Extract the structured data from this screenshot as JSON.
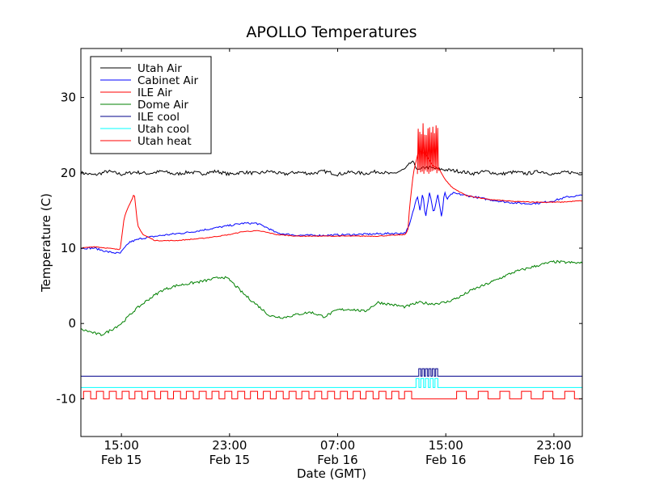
{
  "chart_data": {
    "type": "line",
    "title": "APOLLO Temperatures",
    "xlabel": "Date (GMT)",
    "ylabel": "Temperature (C)",
    "x_unit": "hours since Feb 15 12:00 GMT",
    "xlim": [
      0,
      37.1
    ],
    "ylim": [
      -15,
      36.5
    ],
    "yticks": [
      {
        "value": -10,
        "label": "-10"
      },
      {
        "value": 0,
        "label": "0"
      },
      {
        "value": 10,
        "label": "10"
      },
      {
        "value": 20,
        "label": "20"
      },
      {
        "value": 30,
        "label": "30"
      }
    ],
    "xticks": [
      {
        "value": 3,
        "time": "15:00",
        "date": "Feb 15"
      },
      {
        "value": 11,
        "time": "23:00",
        "date": "Feb 15"
      },
      {
        "value": 19,
        "time": "07:00",
        "date": "Feb 16"
      },
      {
        "value": 27,
        "time": "15:00",
        "date": "Feb 16"
      },
      {
        "value": 35,
        "time": "23:00",
        "date": "Feb 16"
      }
    ],
    "legend_position": "top-left",
    "series": [
      {
        "name": "Utah Air",
        "color": "#000000",
        "x": [
          0,
          1,
          2,
          3,
          4,
          5,
          6,
          7,
          8,
          9,
          10,
          11,
          12,
          13,
          14,
          15,
          16,
          17,
          18,
          19,
          20,
          21,
          22,
          23,
          24,
          24.5,
          25,
          25.5,
          26,
          27,
          28,
          29,
          30,
          31,
          32,
          33,
          34,
          35,
          36,
          37.1
        ],
        "y": [
          20.0,
          19.7,
          20.2,
          19.8,
          20.1,
          19.9,
          20.2,
          19.8,
          20.1,
          19.9,
          20.2,
          19.8,
          20.1,
          19.9,
          20.2,
          19.8,
          20.1,
          19.9,
          20.2,
          19.8,
          20.1,
          19.9,
          20.2,
          19.8,
          20.5,
          21.5,
          20.3,
          20.8,
          20.6,
          20.4,
          20.2,
          19.9,
          20.2,
          19.8,
          20.1,
          19.9,
          20.2,
          19.8,
          20.1,
          19.9
        ],
        "jitter": 0.45
      },
      {
        "name": "Cabinet Air",
        "color": "#0000ff",
        "x": [
          0,
          1,
          2,
          2.9,
          3.6,
          4.5,
          6,
          8,
          10,
          12,
          13,
          13.8,
          14.5,
          16,
          18,
          20,
          22,
          24,
          24.3,
          24.6,
          24.9,
          25.1,
          25.3,
          25.5,
          25.8,
          26.1,
          26.4,
          26.7,
          26.9,
          27.1,
          27.5,
          28.5,
          30,
          31.5,
          33,
          34,
          35,
          36,
          37.1
        ],
        "y": [
          10.0,
          10.0,
          9.5,
          9.3,
          10.8,
          11.3,
          11.7,
          12.1,
          12.7,
          13.3,
          13.3,
          12.7,
          12.0,
          11.7,
          11.7,
          11.8,
          11.9,
          12.0,
          13.0,
          15.0,
          17.0,
          15.0,
          17.5,
          14.0,
          17.5,
          14.5,
          17.2,
          14.0,
          17.5,
          16.5,
          17.3,
          17.0,
          16.5,
          16.1,
          15.9,
          16.0,
          16.3,
          16.8,
          17.0
        ],
        "jitter": 0.25
      },
      {
        "name": "ILE Air",
        "color": "#ff0000",
        "x": [
          0,
          1,
          2,
          2.9,
          3.2,
          3.5,
          3.8,
          3.95,
          4.2,
          4.6,
          5.5,
          7,
          9,
          11,
          12,
          13,
          13.5,
          14.5,
          16,
          18,
          20,
          22,
          24,
          24.2,
          24.3,
          24.6,
          25.0,
          25.5,
          26,
          26.5,
          27.0,
          27.5,
          28.5,
          30,
          32,
          34,
          35.5,
          37.1
        ],
        "y": [
          10.0,
          10.2,
          10.0,
          9.8,
          14.0,
          15.5,
          16.5,
          17.3,
          13.0,
          11.8,
          11.0,
          11.0,
          11.3,
          11.8,
          12.2,
          12.3,
          12.2,
          11.8,
          11.6,
          11.6,
          11.6,
          11.6,
          11.8,
          12.5,
          15.0,
          20.0,
          23.0,
          22.5,
          21.0,
          20.5,
          19.0,
          18.0,
          17.0,
          16.5,
          16.2,
          16.1,
          16.1,
          16.3
        ],
        "jitter": 0.1
      },
      {
        "name": "Dome Air",
        "color": "#008000",
        "x": [
          0,
          0.5,
          1,
          1.5,
          2,
          3,
          4,
          5,
          6,
          7,
          8,
          9,
          10,
          10.5,
          11,
          12,
          13,
          14,
          15,
          16,
          17,
          18,
          19,
          20,
          21,
          22,
          23,
          24,
          25,
          26,
          27,
          28,
          29,
          30,
          31,
          32,
          33,
          34,
          35,
          36,
          37.1
        ],
        "y": [
          -0.8,
          -1.0,
          -1.3,
          -1.5,
          -1.1,
          0.0,
          1.8,
          3.2,
          4.4,
          5.0,
          5.3,
          5.6,
          6.0,
          6.2,
          5.8,
          4.0,
          2.5,
          1.0,
          0.8,
          1.2,
          1.5,
          0.9,
          1.8,
          1.9,
          1.6,
          2.8,
          2.5,
          2.2,
          2.8,
          2.6,
          2.8,
          3.5,
          4.5,
          5.2,
          6.0,
          6.8,
          7.3,
          7.8,
          8.2,
          8.1,
          8.0
        ],
        "jitter": 0.35
      },
      {
        "name": "ILE cool",
        "color": "#00008b",
        "x": [
          0,
          37.1
        ],
        "y": [
          -7.0,
          -7.0
        ],
        "pulses": {
          "base": -7.0,
          "top": -6.0,
          "start": 25.0,
          "end": 26.5,
          "period": 0.25,
          "duty": 0.6
        }
      },
      {
        "name": "Utah cool",
        "color": "#00ffff",
        "x": [
          0,
          24.8,
          37.1
        ],
        "y": [
          -8.5,
          -8.5,
          -8.5
        ],
        "pulses": {
          "base": -8.5,
          "top": -7.3,
          "start": 24.8,
          "end": 26.5,
          "period": 0.35,
          "duty": 0.6
        }
      },
      {
        "name": "Utah heat",
        "color": "#ff0000",
        "x": [
          0,
          37.1
        ],
        "y": [
          -10.0,
          -10.0
        ],
        "pulses": [
          {
            "base": -10.0,
            "top": -9.0,
            "start": 0.2,
            "end": 24.5,
            "period": 0.95,
            "duty": 0.55
          },
          {
            "base": -10.0,
            "top": -9.0,
            "start": 27.8,
            "end": 37.1,
            "period": 1.6,
            "duty": 0.45
          }
        ]
      }
    ]
  }
}
